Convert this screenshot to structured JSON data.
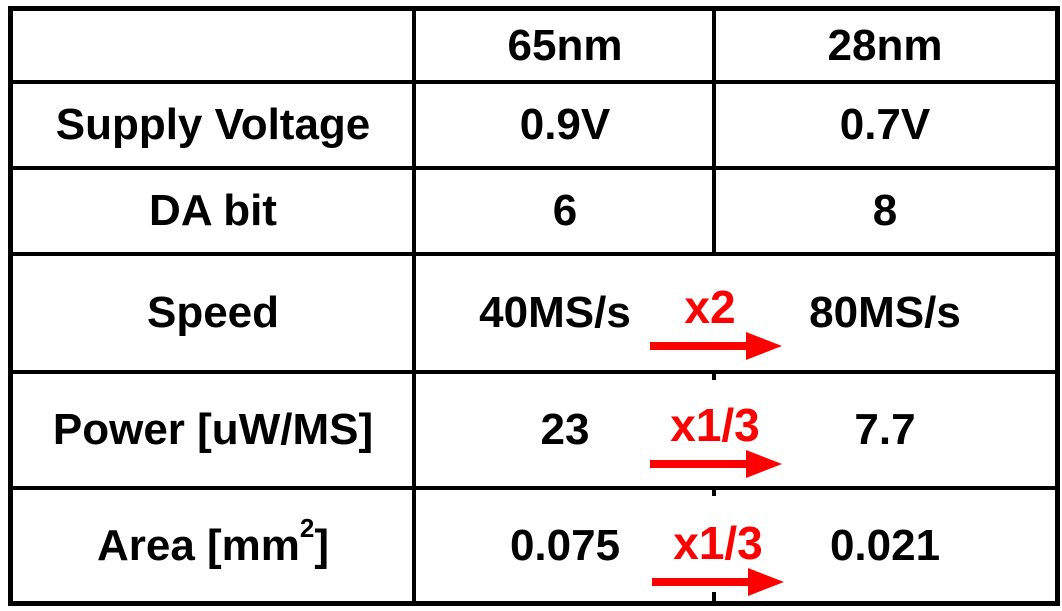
{
  "table": {
    "header": [
      "",
      "65nm",
      "28nm"
    ],
    "rows": [
      {
        "label": "Supply Voltage",
        "v65": "0.9V",
        "v28": "0.7V"
      },
      {
        "label": "DA bit",
        "v65": "6",
        "v28": "8"
      },
      {
        "label": "Speed",
        "v65": "40MS/s",
        "v28": "80MS/s",
        "ratio": "x2"
      },
      {
        "label": "Power [uW/MS]",
        "v65": "23",
        "v28": "7.7",
        "ratio": "x1/3"
      },
      {
        "label": "Area [mm",
        "label_sup": "2",
        "label_tail": "]",
        "v65": "0.075",
        "v28": "0.021",
        "ratio": "x1/3"
      }
    ]
  },
  "colors": {
    "border": "#000000",
    "text": "#000000",
    "ratio": "#ff0000",
    "background": "#ffffff"
  },
  "icons": [
    "right-arrow-icon"
  ]
}
